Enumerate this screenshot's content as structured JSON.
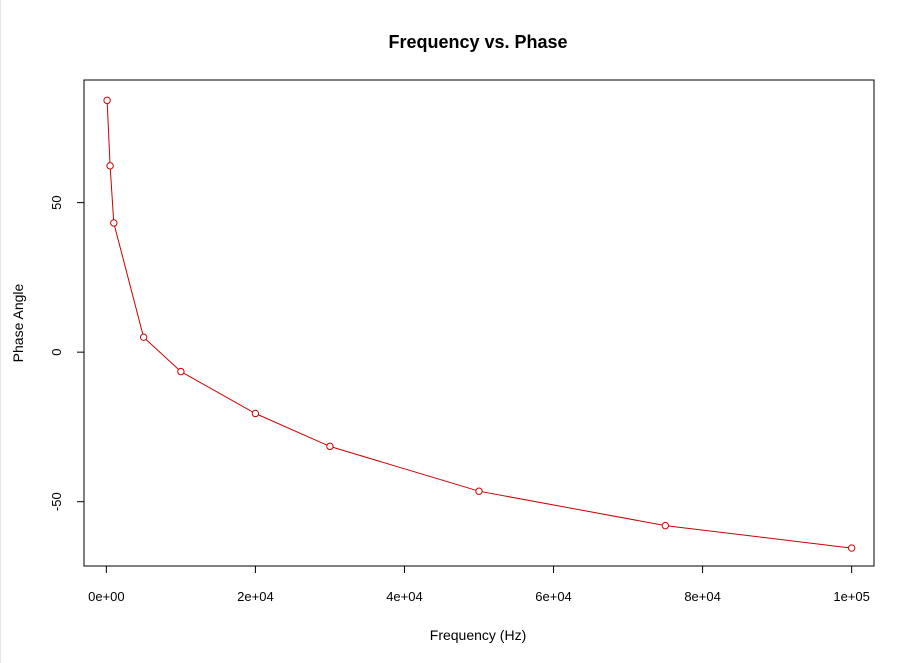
{
  "chart_data": {
    "type": "line",
    "title": "Frequency vs. Phase",
    "xlabel": "Frequency (Hz)",
    "ylabel": "Phase Angle",
    "xlim": [
      -3000,
      103000
    ],
    "ylim": [
      -71.5,
      91
    ],
    "x_ticks": [
      0,
      20000,
      40000,
      60000,
      80000,
      100000
    ],
    "x_tick_labels": [
      "0e+00",
      "2e+04",
      "4e+04",
      "6e+04",
      "8e+04",
      "1e+05"
    ],
    "y_ticks": [
      -50,
      0,
      50
    ],
    "y_tick_labels": [
      "-50",
      "0",
      "50"
    ],
    "grid": false,
    "line_color": "#cc0000",
    "marker": "open-circle",
    "series": [
      {
        "x": [
          100,
          500,
          1000,
          5000,
          10000,
          20000,
          30000,
          50000,
          75000,
          100000
        ],
        "y": [
          84.2,
          62.3,
          43.2,
          5.0,
          -6.5,
          -20.5,
          -31.5,
          -46.5,
          -58.0,
          -65.5
        ]
      }
    ]
  }
}
